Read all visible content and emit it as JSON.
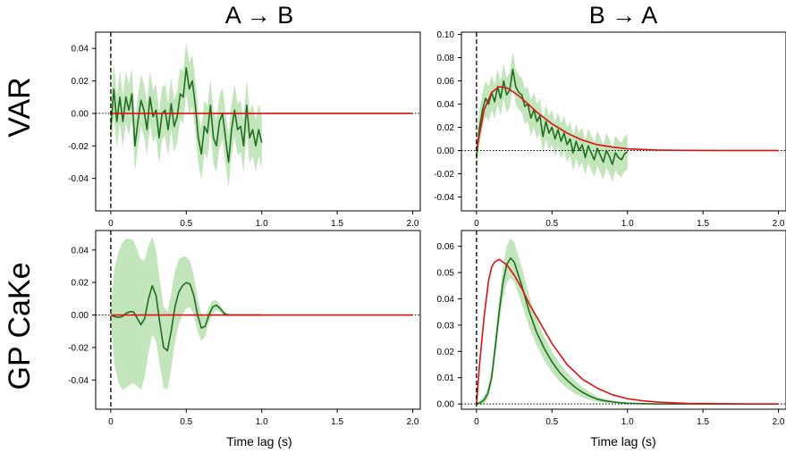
{
  "figure": {
    "col_titles": [
      "A → B",
      "B → A"
    ],
    "row_titles": [
      "VAR",
      "GP CaKe"
    ],
    "xlabel": "Time lag (s)"
  },
  "colors": {
    "estimate_line": "#1f6e1f",
    "estimate_band": "#b7e0b0",
    "true_line": "#e01010",
    "axis": "#000000"
  },
  "chart_data": [
    {
      "type": "line",
      "title": "VAR A → B",
      "xlim": [
        -0.1,
        2.05
      ],
      "ylim": [
        -0.06,
        0.05
      ],
      "xticks": [
        0,
        0.5,
        1,
        1.5,
        2
      ],
      "xtick_labels": [
        "0",
        "0.5",
        "1.0",
        "1.5",
        "2.0"
      ],
      "yticks": [
        -0.04,
        -0.02,
        0,
        0.02,
        0.04
      ],
      "ytick_labels": [
        "-0.04",
        "-0.02",
        "0.00",
        "0.02",
        "0.04"
      ],
      "show_xlabel": false,
      "band_width": 0.016,
      "series": [
        {
          "name": "estimate",
          "x": [
            0,
            0.02,
            0.04,
            0.06,
            0.08,
            0.1,
            0.12,
            0.14,
            0.16,
            0.18,
            0.2,
            0.22,
            0.24,
            0.26,
            0.28,
            0.3,
            0.32,
            0.34,
            0.36,
            0.38,
            0.4,
            0.42,
            0.44,
            0.46,
            0.48,
            0.5,
            0.52,
            0.54,
            0.56,
            0.58,
            0.6,
            0.62,
            0.64,
            0.66,
            0.68,
            0.7,
            0.72,
            0.74,
            0.76,
            0.78,
            0.8,
            0.82,
            0.84,
            0.86,
            0.88,
            0.9,
            0.92,
            0.94,
            0.96,
            0.98,
            1.0
          ],
          "values": [
            -0.01,
            0.015,
            -0.005,
            0.01,
            -0.005,
            0.01,
            0.002,
            0.012,
            -0.02,
            -0.005,
            0.008,
            0.002,
            -0.01,
            0.01,
            -0.002,
            0.002,
            -0.015,
            0.0,
            0.002,
            -0.01,
            0.006,
            -0.008,
            -0.002,
            0.012,
            0.01,
            0.028,
            0.015,
            0.02,
            0.005,
            -0.015,
            -0.025,
            -0.008,
            -0.012,
            0.005,
            -0.015,
            -0.02,
            -0.005,
            0.0,
            -0.015,
            -0.03,
            -0.01,
            0.002,
            -0.01,
            -0.008,
            -0.02,
            0.005,
            -0.015,
            -0.01,
            -0.02,
            -0.01,
            -0.018
          ]
        },
        {
          "name": "true",
          "x": [
            0,
            1,
            2
          ],
          "values": [
            0,
            0,
            0
          ]
        }
      ]
    },
    {
      "type": "line",
      "title": "VAR B → A",
      "xlim": [
        -0.1,
        2.05
      ],
      "ylim": [
        -0.052,
        0.102
      ],
      "xticks": [
        0,
        0.5,
        1,
        1.5,
        2
      ],
      "xtick_labels": [
        "0",
        "0.5",
        "1.0",
        "1.5",
        "2.0"
      ],
      "yticks": [
        -0.04,
        -0.02,
        0,
        0.02,
        0.04,
        0.06,
        0.08,
        0.1
      ],
      "ytick_labels": [
        "-0.04",
        "-0.02",
        "0.00",
        "0.02",
        "0.04",
        "0.06",
        "0.08",
        "0.10"
      ],
      "show_xlabel": true,
      "band_width": 0.015,
      "series": [
        {
          "name": "estimate",
          "x": [
            0,
            0.02,
            0.04,
            0.06,
            0.08,
            0.1,
            0.12,
            0.14,
            0.16,
            0.18,
            0.2,
            0.22,
            0.24,
            0.26,
            0.28,
            0.3,
            0.32,
            0.34,
            0.36,
            0.38,
            0.4,
            0.42,
            0.44,
            0.46,
            0.48,
            0.5,
            0.52,
            0.54,
            0.56,
            0.58,
            0.6,
            0.62,
            0.64,
            0.66,
            0.68,
            0.7,
            0.72,
            0.74,
            0.76,
            0.78,
            0.8,
            0.82,
            0.84,
            0.86,
            0.88,
            0.9,
            0.92,
            0.94,
            0.96,
            0.98,
            1.0
          ],
          "values": [
            -0.005,
            0.02,
            0.035,
            0.045,
            0.04,
            0.05,
            0.042,
            0.055,
            0.045,
            0.06,
            0.048,
            0.052,
            0.07,
            0.055,
            0.05,
            0.048,
            0.038,
            0.04,
            0.028,
            0.035,
            0.025,
            0.03,
            0.012,
            0.025,
            0.015,
            0.02,
            0.01,
            0.018,
            0.008,
            0.015,
            0.005,
            0.01,
            -0.002,
            0.008,
            0.0,
            0.005,
            -0.006,
            0.004,
            -0.002,
            -0.008,
            0.002,
            -0.004,
            -0.01,
            0.0,
            -0.005,
            -0.012,
            -0.002,
            -0.006,
            -0.008,
            -0.003,
            -0.001
          ]
        },
        {
          "name": "true",
          "x": [
            0,
            0.05,
            0.1,
            0.15,
            0.2,
            0.25,
            0.3,
            0.35,
            0.4,
            0.5,
            0.6,
            0.7,
            0.8,
            0.9,
            1.0,
            1.2,
            1.4,
            1.6,
            1.8,
            2.0
          ],
          "values": [
            0,
            0.035,
            0.05,
            0.055,
            0.054,
            0.05,
            0.045,
            0.039,
            0.033,
            0.023,
            0.015,
            0.009,
            0.005,
            0.003,
            0.0015,
            0.0004,
            0.0001,
            0.0,
            0.0,
            0.0
          ]
        }
      ]
    },
    {
      "type": "line",
      "title": "GP CaKe A → B",
      "xlim": [
        -0.1,
        2.05
      ],
      "ylim": [
        -0.058,
        0.052
      ],
      "xticks": [
        0,
        0.5,
        1,
        1.5,
        2
      ],
      "xtick_labels": [
        "0",
        "0.5",
        "1.0",
        "1.5",
        "2.0"
      ],
      "yticks": [
        -0.04,
        -0.02,
        0,
        0.02,
        0.04
      ],
      "ytick_labels": [
        "-0.04",
        "-0.02",
        "0.00",
        "0.02",
        "0.04"
      ],
      "show_xlabel": false,
      "band_width": null,
      "series": [
        {
          "name": "estimate",
          "x": [
            0,
            0.025,
            0.05,
            0.075,
            0.1,
            0.125,
            0.15,
            0.175,
            0.2,
            0.225,
            0.25,
            0.275,
            0.3,
            0.325,
            0.35,
            0.375,
            0.4,
            0.425,
            0.45,
            0.475,
            0.5,
            0.525,
            0.55,
            0.575,
            0.6,
            0.625,
            0.65,
            0.675,
            0.7,
            0.725,
            0.75,
            0.775,
            0.8,
            0.825,
            0.85,
            0.875,
            0.9,
            0.95,
            1.0
          ],
          "values": [
            0,
            -0.001,
            -0.0015,
            -0.001,
            0.001,
            0.002,
            0.002,
            -0.002,
            -0.006,
            -0.002,
            0.01,
            0.018,
            0.012,
            -0.005,
            -0.02,
            -0.022,
            -0.01,
            0.005,
            0.014,
            0.018,
            0.02,
            0.019,
            0.012,
            0.0,
            -0.008,
            -0.007,
            0.0,
            0.005,
            0.006,
            0.004,
            0.001,
            0.0,
            0.0,
            0.0,
            0.0,
            0.0,
            0.0,
            0.0,
            0.0
          ]
        },
        {
          "name": "band_half_width",
          "x": [
            0,
            0.025,
            0.05,
            0.075,
            0.1,
            0.125,
            0.15,
            0.175,
            0.2,
            0.225,
            0.25,
            0.275,
            0.3,
            0.325,
            0.35,
            0.375,
            0.4,
            0.425,
            0.45,
            0.475,
            0.5,
            0.525,
            0.55,
            0.575,
            0.6,
            0.625,
            0.65,
            0.675,
            0.7,
            0.725,
            0.75,
            0.775,
            0.8,
            0.825,
            0.85,
            0.875,
            0.9,
            0.95,
            1.0
          ],
          "values": [
            0.005,
            0.03,
            0.04,
            0.045,
            0.046,
            0.045,
            0.044,
            0.042,
            0.04,
            0.036,
            0.033,
            0.03,
            0.028,
            0.026,
            0.025,
            0.024,
            0.023,
            0.022,
            0.02,
            0.018,
            0.016,
            0.014,
            0.012,
            0.01,
            0.008,
            0.006,
            0.005,
            0.004,
            0.003,
            0.002,
            0.0015,
            0.001,
            0.0005,
            0.0003,
            0.0002,
            0.0001,
            0.0,
            0.0,
            0.0
          ]
        },
        {
          "name": "true",
          "x": [
            0,
            1,
            2
          ],
          "values": [
            0,
            0,
            0
          ]
        }
      ]
    },
    {
      "type": "line",
      "title": "GP CaKe B → A",
      "xlim": [
        -0.1,
        2.05
      ],
      "ylim": [
        -0.002,
        0.066
      ],
      "xticks": [
        0,
        0.5,
        1,
        1.5,
        2
      ],
      "xtick_labels": [
        "0",
        "0.5",
        "1.0",
        "1.5",
        "2.0"
      ],
      "yticks": [
        0,
        0.01,
        0.02,
        0.03,
        0.04,
        0.05,
        0.06
      ],
      "ytick_labels": [
        "0.00",
        "0.01",
        "0.02",
        "0.03",
        "0.04",
        "0.05",
        "0.06"
      ],
      "show_xlabel": true,
      "band_width": null,
      "series": [
        {
          "name": "estimate",
          "x": [
            0,
            0.025,
            0.05,
            0.075,
            0.1,
            0.125,
            0.15,
            0.175,
            0.2,
            0.225,
            0.25,
            0.3,
            0.35,
            0.4,
            0.45,
            0.5,
            0.55,
            0.6,
            0.65,
            0.7,
            0.75,
            0.8,
            0.85,
            0.9,
            0.95,
            1.0,
            1.1,
            1.2,
            1.4,
            1.6,
            1.8,
            2.0
          ],
          "values": [
            0,
            0.0005,
            0.0015,
            0.004,
            0.01,
            0.022,
            0.035,
            0.046,
            0.053,
            0.0555,
            0.054,
            0.045,
            0.035,
            0.027,
            0.021,
            0.016,
            0.012,
            0.009,
            0.0065,
            0.0045,
            0.003,
            0.0018,
            0.0012,
            0.0008,
            0.0005,
            0.0003,
            0.0001,
            0.0,
            0.0,
            0.0,
            0.0,
            0.0
          ]
        },
        {
          "name": "band_half_width",
          "x": [
            0,
            0.025,
            0.05,
            0.075,
            0.1,
            0.125,
            0.15,
            0.175,
            0.2,
            0.225,
            0.25,
            0.3,
            0.35,
            0.4,
            0.45,
            0.5,
            0.55,
            0.6,
            0.65,
            0.7,
            0.75,
            0.8,
            0.85,
            0.9,
            0.95,
            1.0,
            1.1,
            1.2,
            1.4,
            1.6,
            1.8,
            2.0
          ],
          "values": [
            0.0005,
            0.0008,
            0.0015,
            0.002,
            0.003,
            0.004,
            0.005,
            0.006,
            0.007,
            0.0075,
            0.0075,
            0.007,
            0.006,
            0.005,
            0.0045,
            0.004,
            0.0035,
            0.003,
            0.0025,
            0.002,
            0.0015,
            0.001,
            0.0008,
            0.0005,
            0.0003,
            0.0002,
            0.0001,
            0.0,
            0.0,
            0.0,
            0.0,
            0.0
          ]
        },
        {
          "name": "true",
          "x": [
            0,
            0.02,
            0.05,
            0.08,
            0.1,
            0.12,
            0.15,
            0.2,
            0.25,
            0.3,
            0.35,
            0.4,
            0.5,
            0.6,
            0.7,
            0.8,
            0.9,
            1.0,
            1.1,
            1.2,
            1.4,
            1.6,
            1.8,
            2.0
          ],
          "values": [
            0,
            0.015,
            0.033,
            0.047,
            0.052,
            0.054,
            0.055,
            0.053,
            0.049,
            0.044,
            0.038,
            0.033,
            0.023,
            0.015,
            0.0095,
            0.006,
            0.0035,
            0.002,
            0.0012,
            0.0007,
            0.0002,
            0.0001,
            0.0,
            0.0
          ]
        }
      ]
    }
  ]
}
